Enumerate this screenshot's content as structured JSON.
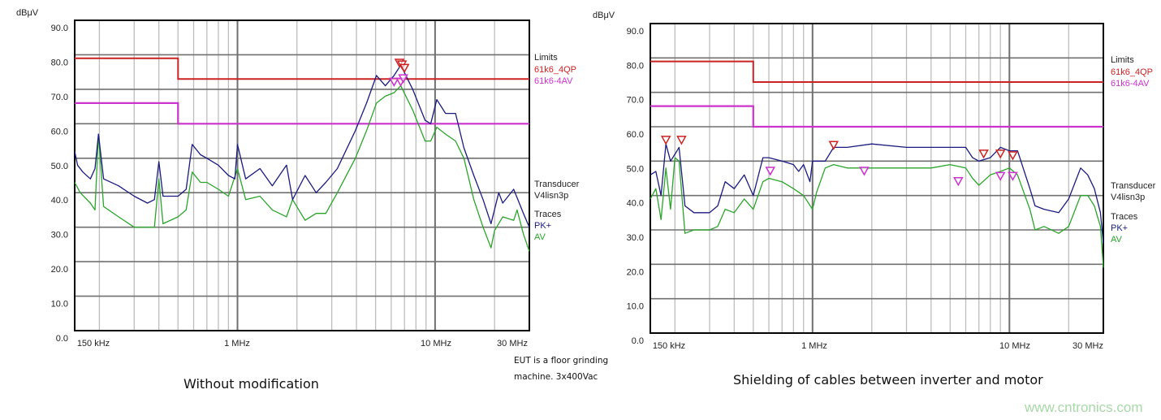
{
  "colors": {
    "qp_limit": "#cc2222",
    "av_limit": "#cc33cc",
    "pk_trace": "#1a1a80",
    "av_trace": "#2aa52a",
    "grid": "#a0a0a0",
    "major_grid": "#707070",
    "qp_marker": "#cc2222",
    "av_marker": "#cc33cc"
  },
  "captions": {
    "left": "Without modification",
    "right": "Shielding of cables between inverter and motor"
  },
  "note": {
    "line1": "EUT is a floor grinding",
    "line2": "machine. 3x400Vac"
  },
  "watermark": "www.cntronics.com",
  "chart_data": [
    {
      "type": "line",
      "xscale": "log",
      "xlim_mhz": [
        0.15,
        30
      ],
      "ylim": [
        0,
        90
      ],
      "grid": true,
      "ylabel": "dBμV",
      "yticks": [
        "0.0",
        "10.0",
        "20.0",
        "30.0",
        "40.0",
        "50.0",
        "60.0",
        "70.0",
        "80.0",
        "90.0"
      ],
      "xticks": [
        "150 kHz",
        "1 MHz",
        "10 MHz",
        "30 MHz"
      ],
      "legend": {
        "limits_title": "Limits",
        "limit_qp": "61k6_4QP",
        "limit_av": "61k6-4AV",
        "transducer_title": "Transducer",
        "transducer": "V4lisn3p",
        "traces_title": "Traces",
        "trace_pk": "PK+",
        "trace_av": "AV"
      },
      "limits": {
        "qp": [
          [
            0.15,
            79
          ],
          [
            0.5,
            79
          ],
          [
            0.5,
            73
          ],
          [
            30,
            73
          ]
        ],
        "av": [
          [
            0.15,
            66
          ],
          [
            0.5,
            66
          ],
          [
            0.5,
            60
          ],
          [
            30,
            60
          ]
        ]
      },
      "series": [
        {
          "name": "PK+",
          "points": [
            [
              0.15,
              52
            ],
            [
              0.155,
              48
            ],
            [
              0.165,
              46
            ],
            [
              0.18,
              44
            ],
            [
              0.19,
              47
            ],
            [
              0.198,
              57
            ],
            [
              0.21,
              44
            ],
            [
              0.25,
              42
            ],
            [
              0.3,
              39
            ],
            [
              0.35,
              37
            ],
            [
              0.38,
              38
            ],
            [
              0.4,
              49
            ],
            [
              0.42,
              39
            ],
            [
              0.5,
              39
            ],
            [
              0.55,
              41
            ],
            [
              0.59,
              54
            ],
            [
              0.65,
              51
            ],
            [
              0.7,
              50
            ],
            [
              0.8,
              48
            ],
            [
              0.9,
              45
            ],
            [
              0.97,
              44
            ],
            [
              1.0,
              54
            ],
            [
              1.1,
              44
            ],
            [
              1.3,
              47
            ],
            [
              1.5,
              42
            ],
            [
              1.77,
              48
            ],
            [
              1.9,
              38
            ],
            [
              2.2,
              45
            ],
            [
              2.5,
              40
            ],
            [
              2.8,
              43
            ],
            [
              3.2,
              47
            ],
            [
              3.95,
              58
            ],
            [
              4.5,
              66
            ],
            [
              5.05,
              74
            ],
            [
              5.6,
              71
            ],
            [
              6.2,
              74
            ],
            [
              6.7,
              77
            ],
            [
              7.7,
              70
            ],
            [
              8.9,
              61
            ],
            [
              9.5,
              60
            ],
            [
              10.2,
              67
            ],
            [
              11.3,
              63
            ],
            [
              12.7,
              63
            ],
            [
              14,
              53
            ],
            [
              15.7,
              45
            ],
            [
              17.5,
              38
            ],
            [
              19.2,
              31
            ],
            [
              21,
              40
            ],
            [
              22,
              37
            ],
            [
              25,
              41
            ],
            [
              28,
              34
            ],
            [
              30,
              30
            ]
          ]
        },
        {
          "name": "AV",
          "points": [
            [
              0.15,
              43
            ],
            [
              0.16,
              40
            ],
            [
              0.18,
              37
            ],
            [
              0.19,
              35
            ],
            [
              0.198,
              57
            ],
            [
              0.21,
              36
            ],
            [
              0.25,
              33
            ],
            [
              0.3,
              30
            ],
            [
              0.35,
              30
            ],
            [
              0.38,
              30
            ],
            [
              0.4,
              44
            ],
            [
              0.42,
              31
            ],
            [
              0.5,
              33
            ],
            [
              0.55,
              35
            ],
            [
              0.59,
              46
            ],
            [
              0.65,
              43
            ],
            [
              0.7,
              43
            ],
            [
              0.8,
              41
            ],
            [
              0.9,
              39
            ],
            [
              1.0,
              47
            ],
            [
              1.1,
              38
            ],
            [
              1.3,
              39
            ],
            [
              1.5,
              35
            ],
            [
              1.77,
              33
            ],
            [
              1.9,
              38
            ],
            [
              2.2,
              32
            ],
            [
              2.5,
              34
            ],
            [
              2.8,
              34
            ],
            [
              3.2,
              40
            ],
            [
              3.95,
              50
            ],
            [
              4.5,
              58
            ],
            [
              5.05,
              66
            ],
            [
              5.6,
              68
            ],
            [
              6.2,
              69
            ],
            [
              6.7,
              71
            ],
            [
              7.7,
              64
            ],
            [
              8.9,
              55
            ],
            [
              9.5,
              55
            ],
            [
              10.2,
              59
            ],
            [
              11.3,
              57
            ],
            [
              12.7,
              55
            ],
            [
              14,
              50
            ],
            [
              15.7,
              38
            ],
            [
              17.5,
              30
            ],
            [
              19.2,
              24
            ],
            [
              20,
              29
            ],
            [
              22,
              33
            ],
            [
              25,
              32
            ],
            [
              26,
              35
            ],
            [
              28,
              28
            ],
            [
              30,
              23
            ]
          ]
        }
      ],
      "qp_markers": [
        [
          6.6,
          77.5
        ],
        [
          6.8,
          77
        ],
        [
          7.0,
          76
        ]
      ],
      "av_markers": [
        [
          6.2,
          72
        ],
        [
          6.7,
          72
        ],
        [
          6.9,
          73
        ]
      ]
    },
    {
      "type": "line",
      "xscale": "log",
      "xlim_mhz": [
        0.15,
        30
      ],
      "ylim": [
        0,
        90
      ],
      "grid": true,
      "ylabel": "dBμV",
      "yticks": [
        "0.0",
        "10.0",
        "20.0",
        "30.0",
        "40.0",
        "50.0",
        "60.0",
        "70.0",
        "80.0",
        "90.0"
      ],
      "xticks": [
        "150 kHz",
        "1 MHz",
        "10 MHz",
        "30 MHz"
      ],
      "legend": {
        "limits_title": "Limits",
        "limit_qp": "61k6_4QP",
        "limit_av": "61k6-4AV",
        "transducer_title": "Transducer",
        "transducer": "V4lisn3p",
        "traces_title": "Traces",
        "trace_pk": "PK+",
        "trace_av": "AV"
      },
      "limits": {
        "qp": [
          [
            0.15,
            79
          ],
          [
            0.5,
            79
          ],
          [
            0.5,
            73
          ],
          [
            30,
            73
          ]
        ],
        "av": [
          [
            0.15,
            66
          ],
          [
            0.5,
            66
          ],
          [
            0.5,
            60
          ],
          [
            30,
            60
          ]
        ]
      },
      "series": [
        {
          "name": "PK+",
          "points": [
            [
              0.15,
              46
            ],
            [
              0.16,
              47
            ],
            [
              0.17,
              40
            ],
            [
              0.18,
              55
            ],
            [
              0.19,
              50
            ],
            [
              0.2,
              52
            ],
            [
              0.21,
              54
            ],
            [
              0.225,
              37
            ],
            [
              0.25,
              35
            ],
            [
              0.3,
              35
            ],
            [
              0.33,
              37
            ],
            [
              0.36,
              44
            ],
            [
              0.4,
              42
            ],
            [
              0.45,
              46
            ],
            [
              0.5,
              40
            ],
            [
              0.56,
              51
            ],
            [
              0.6,
              51
            ],
            [
              0.7,
              50
            ],
            [
              0.8,
              49
            ],
            [
              0.85,
              47
            ],
            [
              0.9,
              49
            ],
            [
              0.97,
              44
            ],
            [
              1.0,
              50
            ],
            [
              1.16,
              50
            ],
            [
              1.28,
              54
            ],
            [
              1.5,
              54
            ],
            [
              2,
              55
            ],
            [
              3,
              54
            ],
            [
              4,
              54
            ],
            [
              5,
              54
            ],
            [
              6,
              54
            ],
            [
              6.5,
              51
            ],
            [
              7,
              50
            ],
            [
              8,
              51
            ],
            [
              9,
              54
            ],
            [
              10,
              53
            ],
            [
              11,
              53
            ],
            [
              12.7,
              42
            ],
            [
              13.5,
              37
            ],
            [
              15,
              36
            ],
            [
              17.8,
              35
            ],
            [
              20,
              39
            ],
            [
              23,
              48
            ],
            [
              25,
              46
            ],
            [
              27,
              42
            ],
            [
              29,
              35
            ],
            [
              30,
              26
            ]
          ]
        },
        {
          "name": "AV",
          "points": [
            [
              0.15,
              39
            ],
            [
              0.16,
              42
            ],
            [
              0.17,
              33
            ],
            [
              0.18,
              48
            ],
            [
              0.19,
              36
            ],
            [
              0.2,
              51
            ],
            [
              0.21,
              50
            ],
            [
              0.225,
              29
            ],
            [
              0.25,
              30
            ],
            [
              0.3,
              30
            ],
            [
              0.33,
              31
            ],
            [
              0.36,
              36
            ],
            [
              0.4,
              35
            ],
            [
              0.45,
              39
            ],
            [
              0.5,
              36
            ],
            [
              0.56,
              44
            ],
            [
              0.6,
              45
            ],
            [
              0.7,
              44
            ],
            [
              0.8,
              42
            ],
            [
              0.9,
              40
            ],
            [
              1.0,
              36
            ],
            [
              1.05,
              41
            ],
            [
              1.16,
              48
            ],
            [
              1.28,
              49
            ],
            [
              1.5,
              48
            ],
            [
              2,
              48
            ],
            [
              3,
              48
            ],
            [
              4,
              48
            ],
            [
              5,
              49
            ],
            [
              6,
              48
            ],
            [
              6.5,
              45
            ],
            [
              7,
              43
            ],
            [
              8,
              46
            ],
            [
              9,
              47
            ],
            [
              10,
              48
            ],
            [
              11,
              46
            ],
            [
              12.7,
              36
            ],
            [
              13.5,
              30
            ],
            [
              15,
              31
            ],
            [
              17.8,
              29
            ],
            [
              20,
              31
            ],
            [
              23,
              40
            ],
            [
              25,
              40
            ],
            [
              27,
              37
            ],
            [
              29,
              31
            ],
            [
              30,
              19
            ]
          ]
        }
      ],
      "qp_markers": [
        [
          0.18,
          56
        ],
        [
          0.216,
          56
        ],
        [
          1.28,
          54.5
        ],
        [
          7.4,
          52
        ],
        [
          9.0,
          52
        ],
        [
          10.4,
          51.5
        ]
      ],
      "av_markers": [
        [
          0.61,
          47
        ],
        [
          1.83,
          47
        ],
        [
          5.5,
          44
        ],
        [
          9.0,
          45.5
        ],
        [
          10.4,
          45.5
        ]
      ]
    }
  ]
}
